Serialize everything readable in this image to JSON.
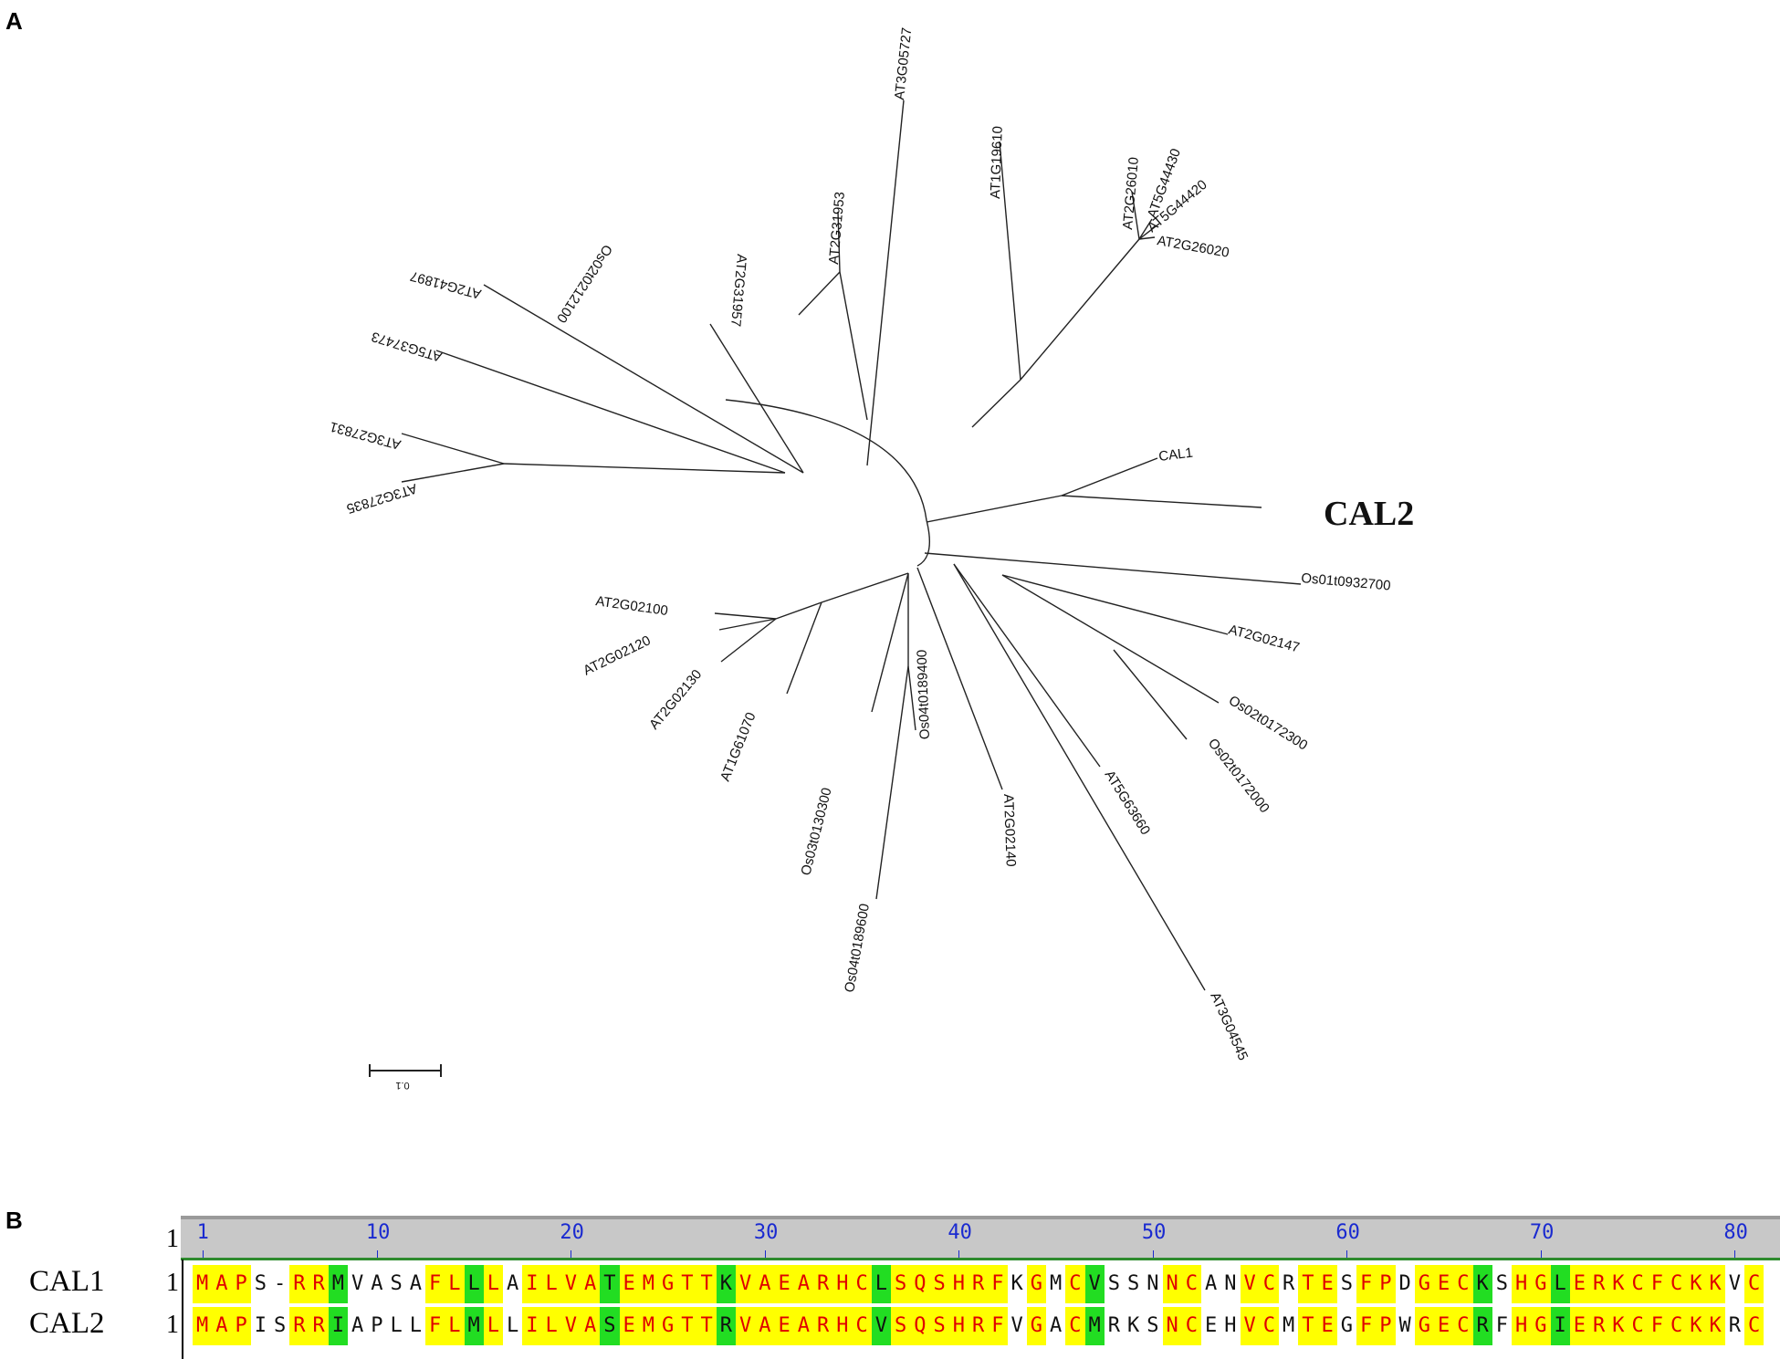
{
  "panels": {
    "a": "A",
    "b": "B"
  },
  "tree": {
    "callout": "CAL2",
    "scale_label": "0.1",
    "leaves": [
      {
        "id": "at3g05727",
        "label": "AT3G05727"
      },
      {
        "id": "at1g19610",
        "label": "AT1G19610"
      },
      {
        "id": "at2g26010",
        "label": "AT2G26010"
      },
      {
        "id": "at5g44430",
        "label": "AT5G44430"
      },
      {
        "id": "at5g44420",
        "label": "AT5G44420"
      },
      {
        "id": "at2g26020",
        "label": "AT2G26020"
      },
      {
        "id": "at2g31953",
        "label": "AT2G31953"
      },
      {
        "id": "at2g31957",
        "label": "AT2G31957"
      },
      {
        "id": "os02g0212100",
        "label": "Os02t0212100"
      },
      {
        "id": "at2g41897",
        "label": "AT2G41897"
      },
      {
        "id": "at5g37473",
        "label": "AT5G37473"
      },
      {
        "id": "at3g27831",
        "label": "AT3G27831"
      },
      {
        "id": "at3g27835",
        "label": "AT3G27835"
      },
      {
        "id": "cal1",
        "label": "CAL1"
      },
      {
        "id": "os01t0932700",
        "label": "Os01t0932700"
      },
      {
        "id": "at2g02147",
        "label": "AT2G02147"
      },
      {
        "id": "os02t0172300",
        "label": "Os02t0172300"
      },
      {
        "id": "os02t0172000",
        "label": "Os02t0172000"
      },
      {
        "id": "at5g63660",
        "label": "AT5G63660"
      },
      {
        "id": "at3g04545",
        "label": "AT3G04545"
      },
      {
        "id": "at2g02140",
        "label": "AT2G02140"
      },
      {
        "id": "os04t0189400",
        "label": "Os04t0189400"
      },
      {
        "id": "os04t0189600",
        "label": "Os04t0189600"
      },
      {
        "id": "os03t0130300",
        "label": "Os03t0130300"
      },
      {
        "id": "at1g61070",
        "label": "AT1G61070"
      },
      {
        "id": "at2g02130",
        "label": "AT2G02130"
      },
      {
        "id": "at2g02120",
        "label": "AT2G02120"
      },
      {
        "id": "at2g02100",
        "label": "AT2G02100"
      }
    ]
  },
  "alignment": {
    "ruler_start": "1",
    "ticks": [
      "1",
      "10",
      "20",
      "30",
      "40",
      "50",
      "60",
      "70",
      "80"
    ],
    "sequences": [
      {
        "name": "CAL1",
        "start": "1",
        "residues": "MAPS-RRMVASAFLLLAILVATEMGTTKVAEARHCLSQSHRFKGMCVSSNNCANVCRTESFPDGECKSHGLERKCFCKKVC"
      },
      {
        "name": "CAL2",
        "start": "1",
        "residues": "MAPISRRIAPLLFLMLLILVASEMGTTRVAEARHCVSQSHRFVGACMRKSNCEHVCMTEGFPWGECRFHGIERKCFCKKRC"
      }
    ],
    "colors": {
      "identical_bg": "#ffff00",
      "identical_fg": "#e00000",
      "similar_bg": "#22dd22",
      "ruler": "#c8c8c8",
      "tick_numbers": "#1a2ad0"
    }
  }
}
